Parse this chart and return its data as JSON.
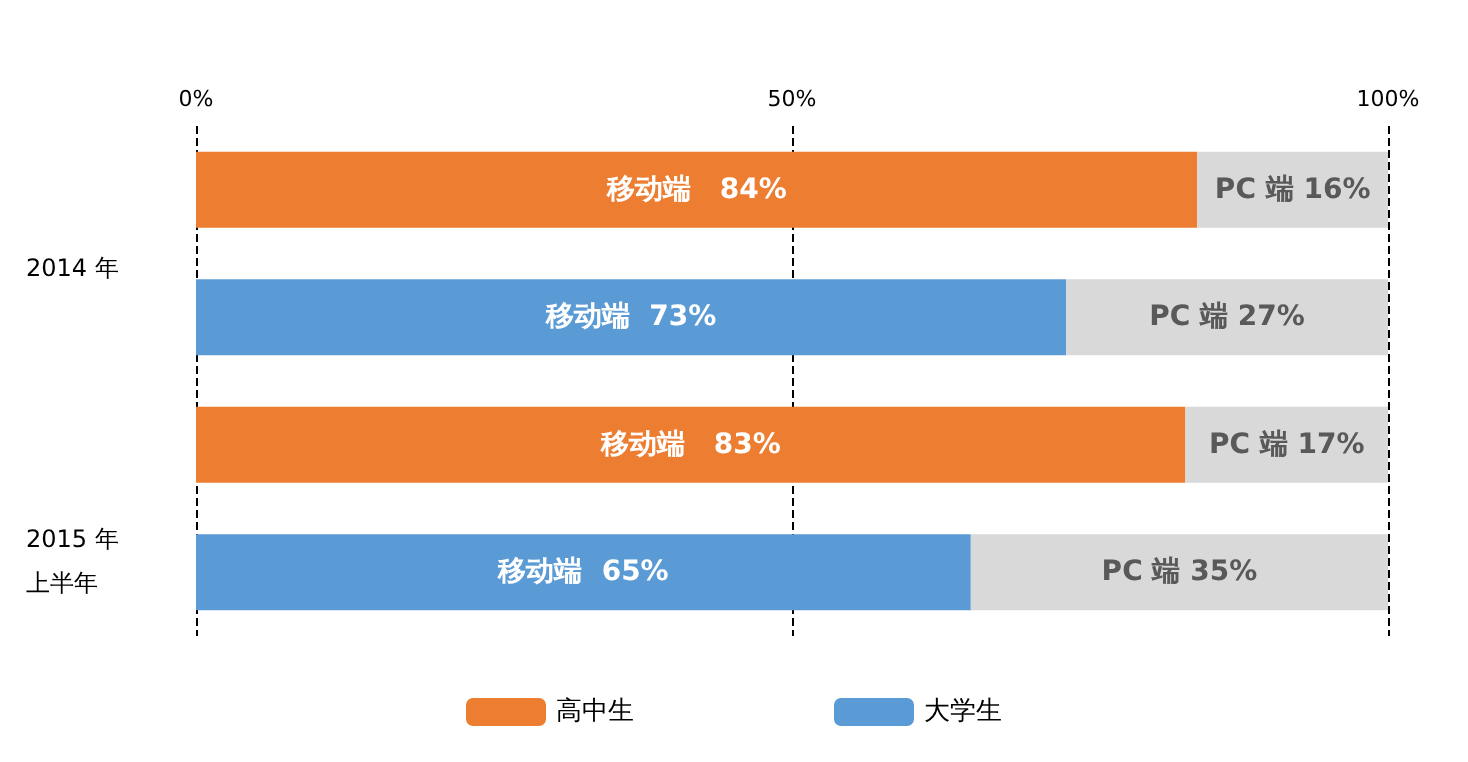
{
  "chart_data": {
    "type": "bar",
    "orientation": "horizontal",
    "stacked": true,
    "relative": false,
    "categories": [
      null,
      null,
      null,
      null
    ],
    "series": [
      {
        "name": "高中生",
        "color": "#ed7d31",
        "values": [
          84,
          null,
          83,
          null
        ],
        "value_labels": [
          "移动端   84%",
          null,
          "移动端   83%",
          null
        ]
      },
      {
        "name": "大学生",
        "color": "#5b9bd5",
        "values": [
          null,
          73,
          null,
          65
        ],
        "value_labels": [
          null,
          "移动端  73%",
          null,
          "移动端  65%"
        ]
      },
      {
        "color": "#d9d9d9",
        "values": [
          16,
          27,
          17,
          35
        ],
        "value_labels": [
          "PC 端 16%",
          "PC 端 27%",
          "PC 端 17%",
          "PC 端 35%"
        ]
      }
    ],
    "xlim": [
      0,
      100
    ],
    "xticks": [
      {
        "value": 0,
        "label": "0%"
      },
      {
        "value": 50,
        "label": "50%"
      },
      {
        "value": 100,
        "label": "100%"
      }
    ],
    "grid": "x",
    "line_style": "dashed",
    "legend": "bottom",
    "tick_labels": "x",
    "annotations": [
      "2014 年",
      "2015 年",
      "上半年"
    ]
  }
}
